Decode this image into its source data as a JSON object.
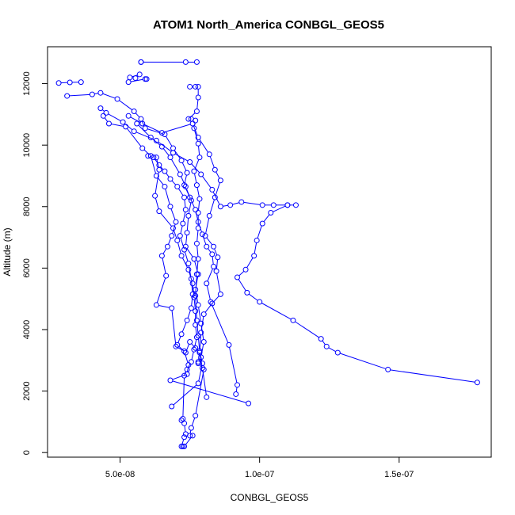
{
  "chart_data": {
    "type": "line",
    "title": "ATOM1 North_America CONBGL_GEOS5",
    "xlabel": "CONBGL_GEOS5",
    "ylabel": "Altitude (m)",
    "xlim": [
      2.4e-08,
      1.83e-07
    ],
    "ylim": [
      -150,
      13200
    ],
    "x_ticks": [
      5e-08,
      1e-07,
      1.5e-07
    ],
    "x_tick_labels": [
      "5.0e-08",
      "1.0e-07",
      "1.5e-07"
    ],
    "y_ticks": [
      0,
      2000,
      4000,
      6000,
      8000,
      10000,
      12000
    ],
    "y_tick_labels": [
      "0",
      "2000",
      "4000",
      "6000",
      "8000",
      "10000",
      "12000"
    ],
    "grid": false,
    "legend": "none",
    "color": "#0000ff",
    "series": [
      {
        "values": [
          [
            5.75e-08,
            12700
          ],
          [
            5.75e-08,
            12700
          ],
          [
            7.35e-08,
            12700
          ],
          [
            7.75e-08,
            12700
          ]
        ]
      },
      {
        "values": [
          [
            2.8e-08,
            12020
          ],
          [
            3.2e-08,
            12040
          ],
          [
            3.6e-08,
            12050
          ]
        ]
      },
      {
        "values": [
          [
            5.55e-08,
            12180
          ],
          [
            5.7e-08,
            12300
          ],
          [
            5.35e-08,
            12200
          ],
          [
            5.3e-08,
            12050
          ],
          [
            5.9e-08,
            12150
          ],
          [
            5.95e-08,
            12150
          ]
        ]
      },
      {
        "values": [
          [
            3.1e-08,
            11600
          ],
          [
            4e-08,
            11650
          ],
          [
            4.3e-08,
            11700
          ],
          [
            4.9e-08,
            11500
          ],
          [
            5.5e-08,
            11100
          ],
          [
            5.75e-08,
            10850
          ],
          [
            5.9e-08,
            10550
          ],
          [
            6.6e-08,
            10350
          ],
          [
            6.9e-08,
            9900
          ],
          [
            7.2e-08,
            9500
          ],
          [
            7.4e-08,
            9100
          ],
          [
            7.3e-08,
            8700
          ],
          [
            7.55e-08,
            8200
          ],
          [
            7.45e-08,
            7700
          ],
          [
            7.4e-08,
            7150
          ],
          [
            7.35e-08,
            6700
          ],
          [
            7.65e-08,
            6300
          ],
          [
            7.8e-08,
            5800
          ],
          [
            7.7e-08,
            5300
          ],
          [
            7.8e-08,
            4800
          ],
          [
            7.9e-08,
            4200
          ],
          [
            8e-08,
            3600
          ],
          [
            7.9e-08,
            3100
          ],
          [
            7.8e-08,
            2900
          ]
        ]
      },
      {
        "values": [
          [
            4.3e-08,
            11200
          ],
          [
            4.5e-08,
            11050
          ],
          [
            5.1e-08,
            10750
          ],
          [
            5.5e-08,
            10450
          ],
          [
            6.3e-08,
            10150
          ],
          [
            6.9e-08,
            9750
          ],
          [
            7.5e-08,
            9450
          ],
          [
            7.9e-08,
            9050
          ],
          [
            8.3e-08,
            8550
          ],
          [
            8.6e-08,
            8000
          ],
          [
            8.95e-08,
            8050
          ],
          [
            9.35e-08,
            8150
          ],
          [
            1.01e-07,
            8050
          ],
          [
            1.05e-07,
            8050
          ],
          [
            1.1e-07,
            8050
          ],
          [
            1.13e-07,
            8050
          ]
        ]
      },
      {
        "values": [
          [
            1.1e-07,
            8050
          ],
          [
            1.04e-07,
            7800
          ],
          [
            1.01e-07,
            7450
          ],
          [
            9.9e-08,
            6900
          ],
          [
            9.8e-08,
            6400
          ],
          [
            9.5e-08,
            5950
          ],
          [
            9.2e-08,
            5700
          ],
          [
            9.55e-08,
            5200
          ],
          [
            1e-07,
            4900
          ],
          [
            1.12e-07,
            4300
          ],
          [
            1.22e-07,
            3700
          ],
          [
            1.24e-07,
            3450
          ],
          [
            1.28e-07,
            3250
          ],
          [
            1.46e-07,
            2700
          ],
          [
            1.78e-07,
            2280
          ]
        ]
      },
      {
        "values": [
          [
            4.4e-08,
            10950
          ],
          [
            4.6e-08,
            10700
          ],
          [
            5.2e-08,
            10600
          ],
          [
            5.8e-08,
            9900
          ],
          [
            6.1e-08,
            9650
          ],
          [
            6.3e-08,
            9000
          ],
          [
            6.6e-08,
            8650
          ],
          [
            6.8e-08,
            8000
          ],
          [
            7e-08,
            7500
          ],
          [
            6.85e-08,
            7050
          ],
          [
            6.7e-08,
            6700
          ],
          [
            6.5e-08,
            6400
          ],
          [
            6.65e-08,
            5750
          ],
          [
            6.3e-08,
            4800
          ],
          [
            6.85e-08,
            4700
          ],
          [
            7e-08,
            3450
          ],
          [
            7.3e-08,
            3300
          ],
          [
            7.45e-08,
            2850
          ],
          [
            7.4e-08,
            2550
          ],
          [
            6.8e-08,
            2350
          ],
          [
            9.6e-08,
            1600
          ]
        ]
      },
      {
        "values": [
          [
            5.3e-08,
            10950
          ],
          [
            5.8e-08,
            10700
          ],
          [
            6.5e-08,
            10400
          ],
          [
            7.6e-08,
            10700
          ],
          [
            7.8e-08,
            10250
          ],
          [
            8.2e-08,
            9700
          ],
          [
            8.4e-08,
            9200
          ],
          [
            8.6e-08,
            8850
          ],
          [
            8.4e-08,
            8300
          ],
          [
            8.2e-08,
            7700
          ],
          [
            8.05e-08,
            7050
          ],
          [
            8.35e-08,
            6700
          ],
          [
            8.5e-08,
            6350
          ],
          [
            8.45e-08,
            5900
          ],
          [
            8.6e-08,
            5150
          ],
          [
            8.3e-08,
            4850
          ],
          [
            8e-08,
            4500
          ],
          [
            7.9e-08,
            3900
          ],
          [
            7.85e-08,
            3250
          ],
          [
            7.95e-08,
            2750
          ],
          [
            8.1e-08,
            1800
          ]
        ]
      },
      {
        "values": [
          [
            5.6e-08,
            10700
          ],
          [
            6.1e-08,
            10250
          ],
          [
            6.5e-08,
            9950
          ],
          [
            6.8e-08,
            9600
          ],
          [
            7.15e-08,
            9050
          ],
          [
            7.35e-08,
            8650
          ],
          [
            7.5e-08,
            8300
          ],
          [
            7.7e-08,
            7900
          ],
          [
            7.8e-08,
            7500
          ],
          [
            7.95e-08,
            7100
          ],
          [
            8.1e-08,
            6700
          ],
          [
            8.3e-08,
            6450
          ],
          [
            8.35e-08,
            6050
          ],
          [
            8.1e-08,
            5500
          ],
          [
            8.25e-08,
            4900
          ],
          [
            8.9e-08,
            3500
          ],
          [
            9.2e-08,
            2200
          ],
          [
            9.15e-08,
            1900
          ]
        ]
      },
      {
        "values": [
          [
            6.3e-08,
            9600
          ],
          [
            6.4e-08,
            9200
          ],
          [
            6.25e-08,
            8350
          ],
          [
            6.4e-08,
            7850
          ],
          [
            6.9e-08,
            7300
          ],
          [
            7.05e-08,
            6900
          ],
          [
            7.2e-08,
            6400
          ],
          [
            7.45e-08,
            5950
          ],
          [
            7.6e-08,
            5500
          ],
          [
            7.65e-08,
            5050
          ],
          [
            7.7e-08,
            4600
          ],
          [
            7.7e-08,
            4150
          ],
          [
            7.75e-08,
            3750
          ],
          [
            7.65e-08,
            3350
          ],
          [
            7.55e-08,
            2950
          ],
          [
            7.4e-08,
            2700
          ],
          [
            7.3e-08,
            2500
          ],
          [
            7.25e-08,
            1100
          ],
          [
            7.2e-08,
            1050
          ],
          [
            7.3e-08,
            950
          ],
          [
            7.35e-08,
            600
          ],
          [
            7.3e-08,
            500
          ],
          [
            7.2e-08,
            200
          ],
          [
            7.25e-08,
            200
          ]
        ]
      },
      {
        "values": [
          [
            7.5e-08,
            11900
          ],
          [
            7.7e-08,
            11900
          ],
          [
            7.8e-08,
            11900
          ],
          [
            7.8e-08,
            11550
          ],
          [
            7.75e-08,
            11100
          ],
          [
            7.45e-08,
            10850
          ],
          [
            7.55e-08,
            10850
          ],
          [
            7.7e-08,
            10800
          ],
          [
            7.65e-08,
            10550
          ],
          [
            7.8e-08,
            10050
          ],
          [
            7.85e-08,
            9600
          ],
          [
            7.65e-08,
            9150
          ],
          [
            7.75e-08,
            8700
          ],
          [
            7.85e-08,
            8250
          ],
          [
            7.8e-08,
            7800
          ],
          [
            7.8e-08,
            7300
          ],
          [
            7.75e-08,
            6800
          ],
          [
            7.8e-08,
            6300
          ],
          [
            7.75e-08,
            5800
          ],
          [
            7.7e-08,
            5100
          ],
          [
            7.75e-08,
            4300
          ],
          [
            7.8e-08,
            3800
          ],
          [
            7.85e-08,
            3300
          ],
          [
            7.8e-08,
            2950
          ],
          [
            8e-08,
            2700
          ],
          [
            7.7e-08,
            1200
          ],
          [
            7.55e-08,
            800
          ],
          [
            7.5e-08,
            550
          ],
          [
            7.6e-08,
            550
          ],
          [
            7.3e-08,
            200
          ]
        ]
      },
      {
        "values": [
          [
            6e-08,
            9650
          ],
          [
            6.2e-08,
            9600
          ],
          [
            6.4e-08,
            9350
          ],
          [
            6.6e-08,
            9150
          ],
          [
            6.8e-08,
            8900
          ],
          [
            7.05e-08,
            8650
          ],
          [
            7.3e-08,
            8300
          ],
          [
            7.35e-08,
            7900
          ],
          [
            7.25e-08,
            7450
          ],
          [
            7.15e-08,
            7050
          ],
          [
            7.3e-08,
            6600
          ],
          [
            7.45e-08,
            6150
          ],
          [
            7.55e-08,
            5650
          ],
          [
            7.6e-08,
            5150
          ],
          [
            7.55e-08,
            4700
          ],
          [
            7.4e-08,
            4300
          ],
          [
            7.2e-08,
            3850
          ],
          [
            7.05e-08,
            3500
          ],
          [
            7.35e-08,
            3250
          ],
          [
            7.5e-08,
            3600
          ],
          [
            7.7e-08,
            3400
          ],
          [
            7.85e-08,
            3300
          ],
          [
            7.95e-08,
            2900
          ],
          [
            7.8e-08,
            2250
          ],
          [
            6.85e-08,
            1500
          ]
        ]
      }
    ]
  }
}
